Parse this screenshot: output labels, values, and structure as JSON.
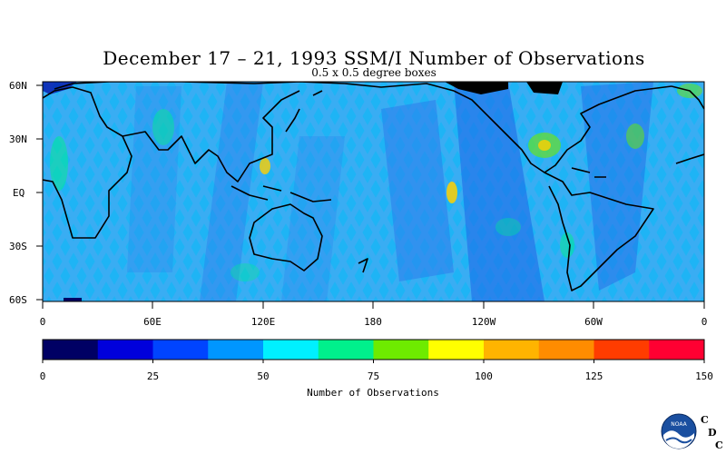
{
  "title": "December 17 – 21, 1993 SSM/I Number of Observations",
  "subtitle": "0.5 x 0.5 degree boxes",
  "map": {
    "lat_labels": [
      "60N",
      "30N",
      "EQ",
      "30S",
      "60S"
    ],
    "lon_labels": [
      "0",
      "60E",
      "120E",
      "180",
      "120W",
      "60W",
      "0"
    ]
  },
  "colorbar": {
    "colors": [
      "#000064",
      "#0000dc",
      "#0044ff",
      "#0096ff",
      "#00f0ff",
      "#00f08c",
      "#6eeb00",
      "#ffff00",
      "#ffb400",
      "#ff8c00",
      "#ff3c00",
      "#ff0032"
    ],
    "tick_labels": [
      "0",
      "25",
      "50",
      "75",
      "100",
      "125",
      "150"
    ],
    "label": "Number of Observations"
  },
  "logo": {
    "badge_text": "NOAA",
    "letters": [
      "C",
      "D",
      "C"
    ],
    "letter_color": "#e00000",
    "icon": "noaa-logo-icon"
  }
}
